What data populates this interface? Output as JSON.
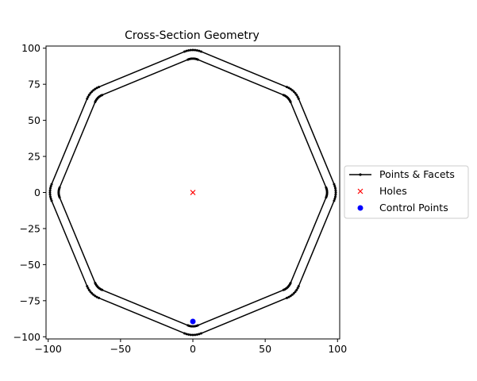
{
  "chart_data": {
    "type": "line",
    "title": "Cross-Section Geometry",
    "xlabel": "",
    "ylabel": "",
    "xlim": [
      -101.5,
      101.5
    ],
    "ylim": [
      -101.5,
      101.5
    ],
    "xticks": [
      -100,
      -50,
      0,
      50,
      100
    ],
    "yticks": [
      -100,
      -75,
      -50,
      -25,
      0,
      25,
      50,
      75,
      100
    ],
    "grid": false,
    "legend_position": "center-right outside",
    "geometry": {
      "shape": "hollow octagon with rounded corners",
      "outer_flat_half_width": 92.4,
      "outer_corner_radius": 15,
      "inner_flat_half_width": 86.4,
      "inner_corner_radius": 9,
      "points_per_corner": 9
    },
    "series": [
      {
        "name": "Points & Facets",
        "role": "facets",
        "color": "#000000",
        "marker": "point"
      },
      {
        "name": "Holes",
        "role": "holes",
        "color": "#ff0000",
        "marker": "x",
        "points": [
          [
            0,
            0
          ]
        ]
      },
      {
        "name": "Control Points",
        "role": "control",
        "color": "#0000ff",
        "marker": "circle",
        "points": [
          [
            0,
            -89.4
          ]
        ]
      }
    ]
  }
}
